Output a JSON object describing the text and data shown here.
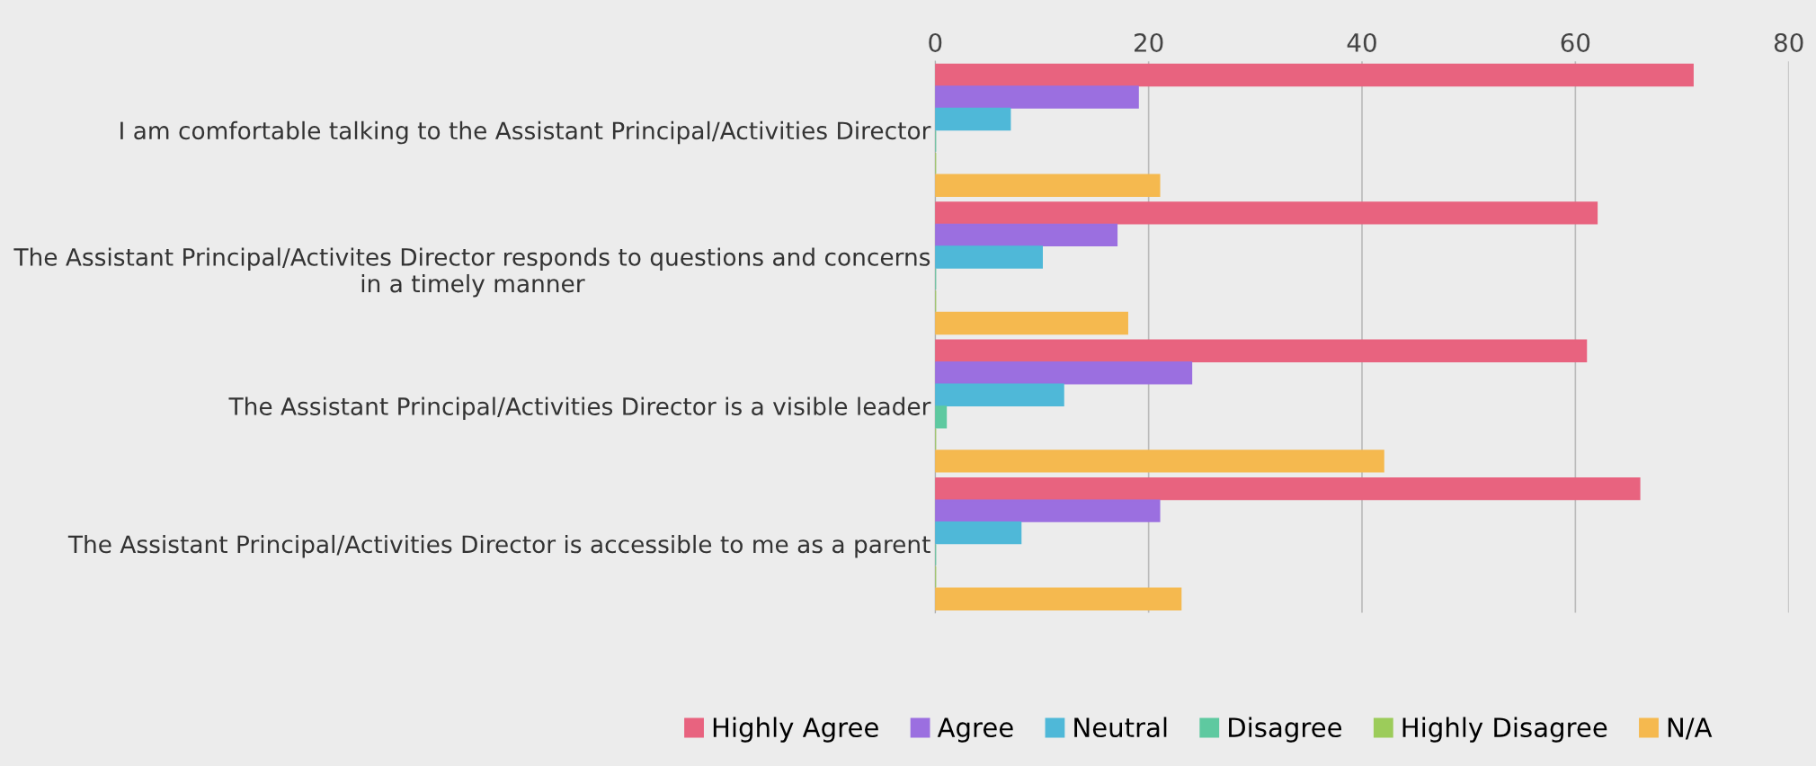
{
  "chart_data": {
    "type": "bar",
    "orientation": "horizontal",
    "categories": [
      "I am comfortable talking to the Assistant Principal/Activities Director",
      "The Assistant Principal/Activites Director responds to questions and concerns in a timely manner",
      "The Assistant Principal/Activities Director is a visible leader",
      "The Assistant Principal/Activities Director is accessible to me as a parent"
    ],
    "series": [
      {
        "name": "Highly Agree",
        "color": "#e8637f",
        "values": [
          71,
          62,
          61,
          66
        ]
      },
      {
        "name": "Agree",
        "color": "#9b6fe0",
        "values": [
          19,
          17,
          24,
          21
        ]
      },
      {
        "name": "Neutral",
        "color": "#4fb8d8",
        "values": [
          7,
          10,
          12,
          8
        ]
      },
      {
        "name": "Disagree",
        "color": "#5ec9a0",
        "values": [
          0,
          0,
          1,
          0
        ]
      },
      {
        "name": "Highly Disagree",
        "color": "#9ccc5a",
        "values": [
          0,
          0,
          0,
          0
        ]
      },
      {
        "name": "N/A",
        "color": "#f5b94f",
        "values": [
          21,
          18,
          42,
          23
        ]
      }
    ],
    "xlim": [
      0,
      80
    ],
    "xticks": [
      0,
      20,
      40,
      60,
      80
    ],
    "grid": "x",
    "legend": "bottom"
  }
}
